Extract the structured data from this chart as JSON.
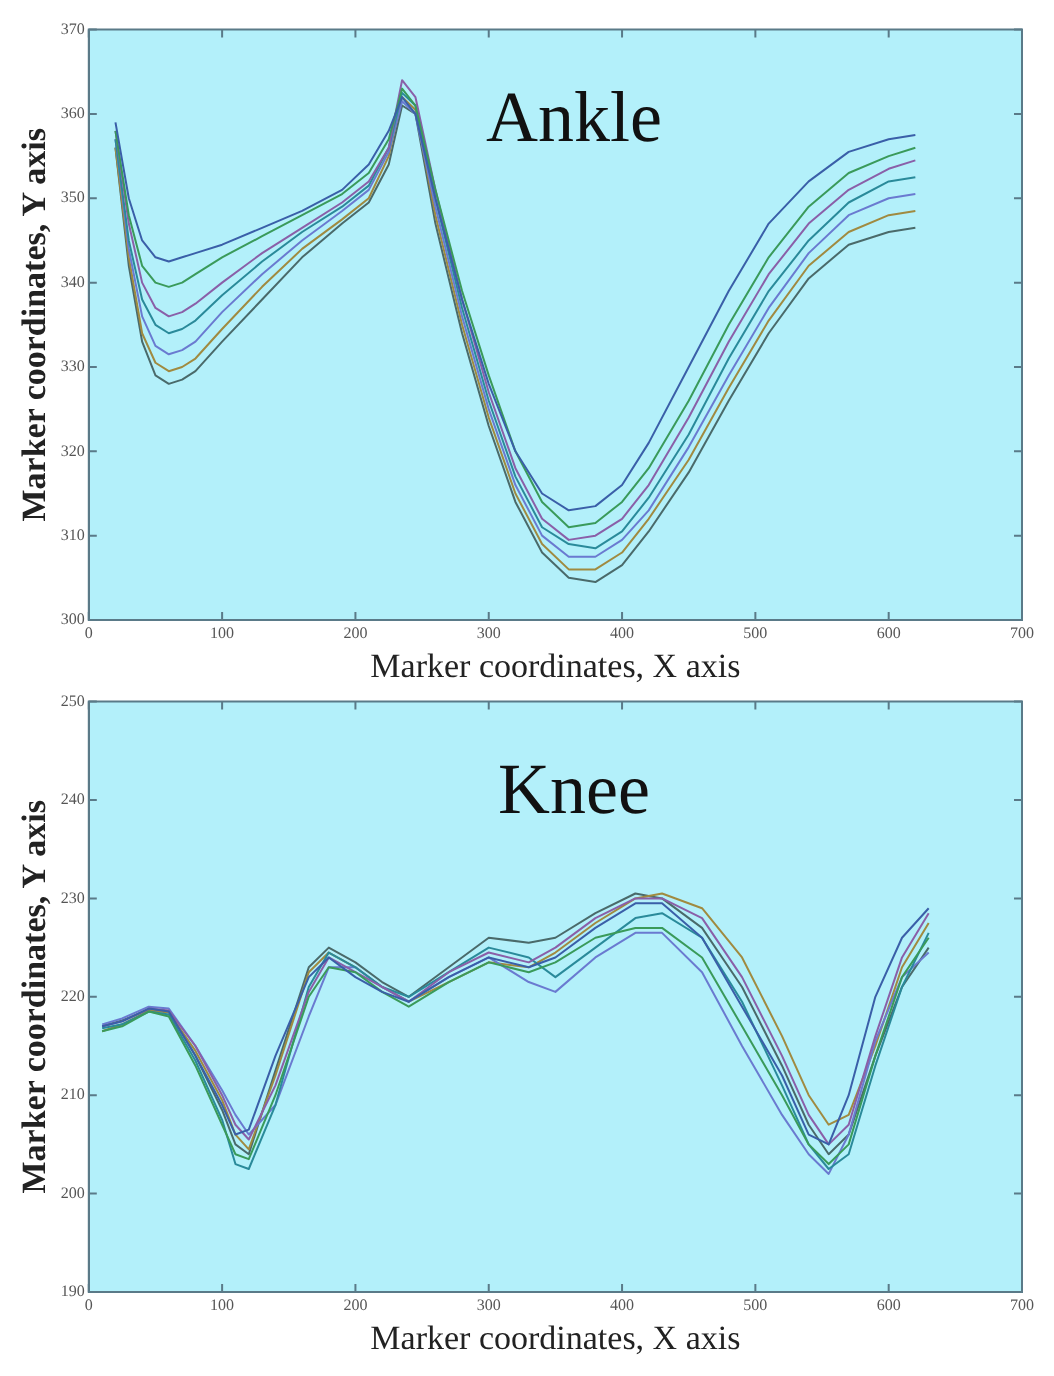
{
  "chart_data": [
    {
      "type": "line",
      "title": "Ankle",
      "xlabel": "Marker coordinates, X axis",
      "ylabel": "Marker coordinates, Y axis",
      "xlim": [
        0,
        700
      ],
      "xticks": [
        0,
        100,
        200,
        300,
        400,
        500,
        600,
        700
      ],
      "ylim": [
        300,
        370
      ],
      "yticks": [
        300,
        310,
        320,
        330,
        340,
        350,
        360,
        370
      ],
      "grid": false,
      "legend": false,
      "marker": "none",
      "line_style": "solid",
      "x": [
        20,
        30,
        40,
        50,
        60,
        70,
        80,
        100,
        130,
        160,
        190,
        210,
        225,
        235,
        245,
        260,
        280,
        300,
        320,
        340,
        360,
        380,
        400,
        420,
        450,
        480,
        510,
        540,
        570,
        600,
        620
      ],
      "series": [
        {
          "color": "#3a5fa8",
          "values": [
            359,
            350,
            345,
            343,
            342.5,
            343,
            343.5,
            344.5,
            346.5,
            348.5,
            351,
            354,
            358,
            362,
            360,
            350,
            338,
            328,
            320,
            315,
            313,
            313.5,
            316,
            321,
            330,
            339,
            347,
            352,
            355.5,
            357,
            357.5
          ]
        },
        {
          "color": "#3a9a5a",
          "values": [
            358,
            348,
            342,
            340,
            339.5,
            340,
            341,
            343,
            345.5,
            348,
            350.5,
            353,
            357,
            363,
            361,
            351,
            339,
            329,
            320,
            314,
            311,
            311.5,
            314,
            318,
            326,
            335,
            343,
            349,
            353,
            355,
            356
          ]
        },
        {
          "color": "#8a5fa8",
          "values": [
            358,
            347,
            340,
            337,
            336,
            336.5,
            337.5,
            340,
            343.5,
            346.5,
            349.5,
            352,
            356,
            364,
            362,
            351,
            338,
            327,
            318,
            312,
            309.5,
            310,
            312,
            316,
            324,
            333,
            341,
            347,
            351,
            353.5,
            354.5
          ]
        },
        {
          "color": "#2a8a9a",
          "values": [
            357,
            345,
            338,
            335,
            334,
            334.5,
            335.5,
            338.5,
            342.5,
            346,
            349,
            351.5,
            356,
            362.5,
            361,
            350,
            337,
            326,
            317,
            311,
            309,
            308.5,
            310.5,
            314.5,
            322,
            331,
            339,
            345,
            349.5,
            352,
            352.5
          ]
        },
        {
          "color": "#6a7ad0",
          "values": [
            357,
            344,
            336,
            332.5,
            331.5,
            332,
            333,
            336.5,
            341,
            345,
            348.5,
            351,
            355.5,
            361.5,
            360,
            349,
            336,
            325,
            316,
            310,
            307.5,
            307.5,
            309.5,
            313,
            320.5,
            329,
            337,
            343.5,
            348,
            350,
            350.5
          ]
        },
        {
          "color": "#a08a40",
          "values": [
            356,
            343,
            334,
            330.5,
            329.5,
            330,
            331,
            334.5,
            339.5,
            344,
            347.5,
            350,
            355,
            362,
            360.5,
            348,
            335,
            324,
            315,
            309,
            306,
            306,
            308,
            312,
            319,
            327.5,
            335.5,
            342,
            346,
            348,
            348.5
          ]
        },
        {
          "color": "#4a6a6a",
          "values": [
            356,
            342,
            333,
            329,
            328,
            328.5,
            329.5,
            333,
            338,
            343,
            347,
            349.5,
            354,
            361,
            360,
            347,
            334,
            323,
            314,
            308,
            305,
            304.5,
            306.5,
            310.5,
            317.5,
            326,
            334,
            340.5,
            344.5,
            346,
            346.5
          ]
        }
      ]
    },
    {
      "type": "line",
      "title": "Knee",
      "xlabel": "Marker coordinates, X axis",
      "ylabel": "Marker coordinates, Y axis",
      "xlim": [
        0,
        700
      ],
      "xticks": [
        0,
        100,
        200,
        300,
        400,
        500,
        600,
        700
      ],
      "ylim": [
        190,
        250
      ],
      "yticks": [
        190,
        200,
        210,
        220,
        230,
        240,
        250
      ],
      "grid": false,
      "legend": false,
      "marker": "none",
      "line_style": "solid",
      "x": [
        10,
        25,
        45,
        60,
        80,
        100,
        110,
        120,
        140,
        165,
        180,
        200,
        220,
        240,
        270,
        300,
        330,
        350,
        380,
        410,
        430,
        460,
        490,
        520,
        540,
        555,
        570,
        590,
        610,
        630
      ],
      "series": [
        {
          "color": "#3a5fa8",
          "values": [
            217,
            217.5,
            218.8,
            218.5,
            214,
            209,
            206,
            206.5,
            214,
            222,
            224,
            222,
            220.5,
            219.5,
            222,
            224,
            223,
            224,
            227,
            229.5,
            229.5,
            226,
            219,
            212,
            206,
            205,
            210,
            220,
            226,
            229
          ]
        },
        {
          "color": "#3a9a5a",
          "values": [
            216.5,
            217,
            218.5,
            218,
            213,
            207,
            204,
            203.5,
            210,
            220,
            223,
            222.5,
            220.5,
            219,
            221.5,
            223.5,
            222.5,
            223.5,
            226,
            227,
            227,
            224,
            217,
            210,
            205,
            203,
            205,
            214,
            222,
            226
          ]
        },
        {
          "color": "#8a5fa8",
          "values": [
            217,
            217.5,
            218.8,
            218.6,
            215,
            210,
            207,
            205.5,
            211,
            220.5,
            224,
            222.5,
            221,
            219.5,
            222.5,
            224.5,
            223.5,
            225,
            228,
            230,
            230,
            228,
            222,
            214,
            208,
            205,
            207,
            216,
            224,
            228.5
          ]
        },
        {
          "color": "#2a8a9a",
          "values": [
            216.8,
            217.2,
            218.5,
            218.2,
            213.5,
            207.5,
            203,
            202.5,
            209,
            221,
            224.5,
            223,
            221,
            220,
            222.5,
            225,
            224,
            222,
            225,
            228,
            228.5,
            226,
            219.5,
            211,
            205,
            202.5,
            204,
            213,
            221,
            226.5
          ]
        },
        {
          "color": "#6a7ad0",
          "values": [
            217.2,
            217.8,
            219,
            218.8,
            215,
            210.5,
            208,
            206,
            209,
            218,
            223,
            223,
            221,
            219.5,
            222,
            224,
            221.5,
            220.5,
            224,
            226.5,
            226.5,
            222.5,
            215,
            208,
            204,
            202,
            206,
            215.5,
            222,
            224.5
          ]
        },
        {
          "color": "#a08a40",
          "values": [
            216.5,
            217.2,
            218.6,
            218.4,
            214.5,
            209.5,
            206,
            204.5,
            212,
            222.5,
            224.5,
            223,
            221,
            219.5,
            221.5,
            223.5,
            223,
            224.5,
            227.5,
            230,
            230.5,
            229,
            224,
            216,
            210,
            207,
            208,
            215,
            223,
            227.5
          ]
        },
        {
          "color": "#4a6a6a",
          "values": [
            217,
            217.6,
            218.7,
            218.5,
            214,
            208.5,
            205,
            204,
            212.5,
            223,
            225,
            223.5,
            221.5,
            220,
            223,
            226,
            225.5,
            226,
            228.5,
            230.5,
            230,
            227,
            221,
            213,
            207,
            204,
            206,
            214,
            221,
            225
          ]
        }
      ]
    }
  ]
}
